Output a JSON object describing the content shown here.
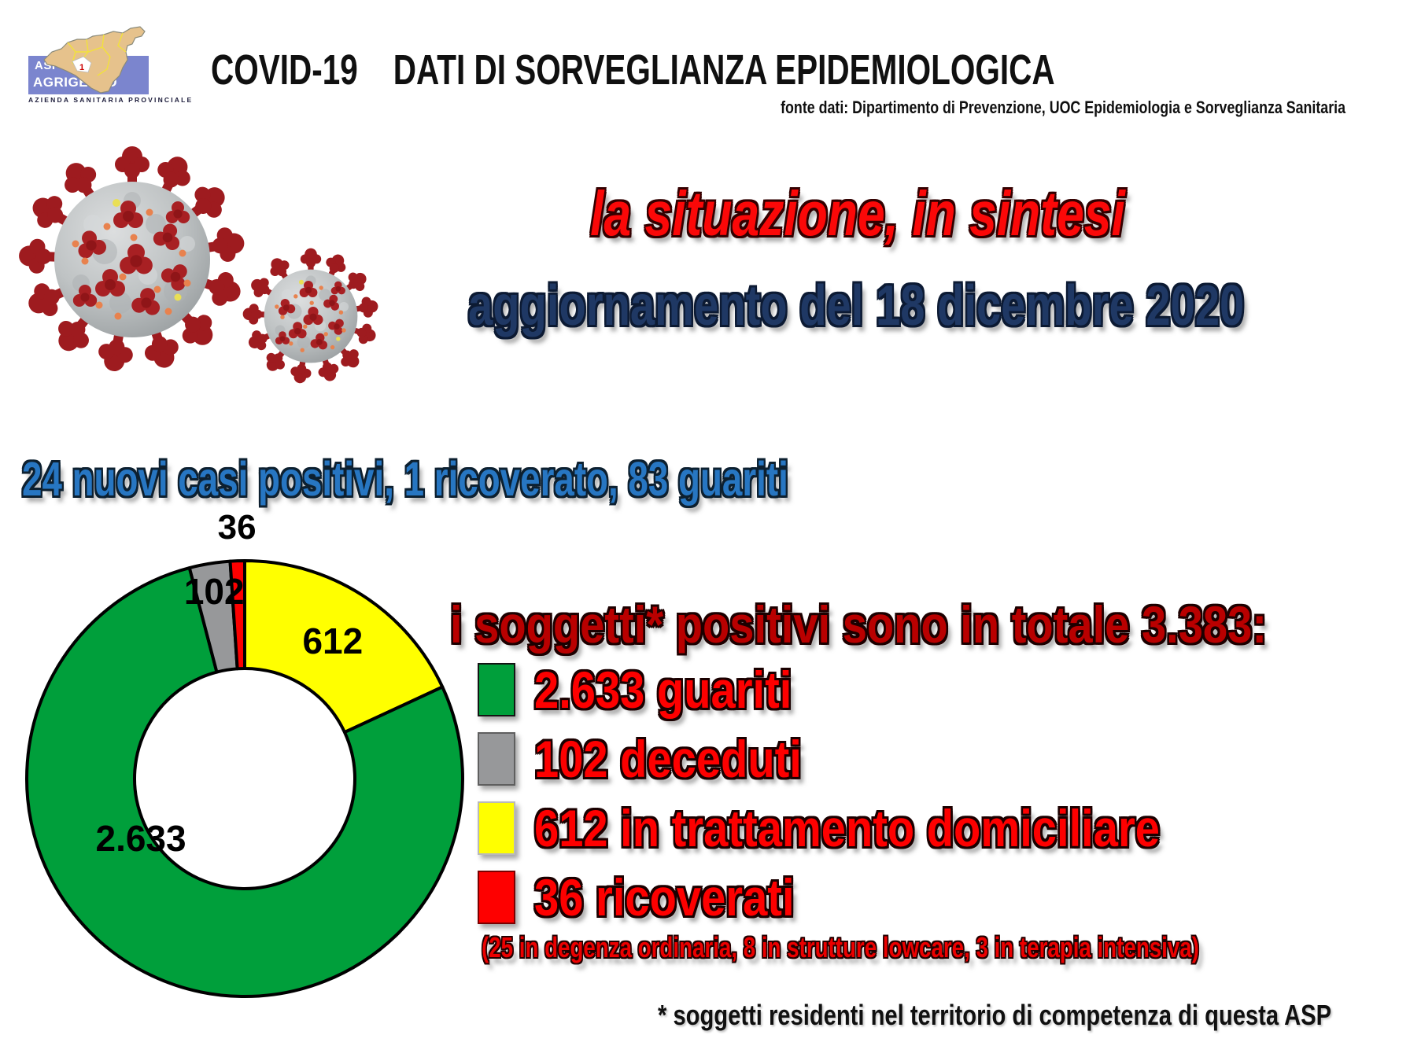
{
  "slide": {
    "logo": {
      "org_short": "ASP",
      "org_city": "AGRIGENTO",
      "org_subtitle": "AZIENDA SANITARIA PROVINCIALE",
      "map_label": "1"
    },
    "header": {
      "title_part1": "COVID-19",
      "title_part2": "DATI DI SORVEGLIANZA EPIDEMIOLOGICA",
      "source_line": "fonte dati: Dipartimento di Prevenzione, UOC Epidemiologia e Sorveglianza Sanitaria"
    },
    "intro": {
      "headline": "la situazione, in sintesi",
      "update_line": "aggiornamento del 18 dicembre 2020",
      "daily_line": "24 nuovi casi positivi, 1 ricoverato, 83 guariti"
    },
    "summary": {
      "title": "i soggetti* positivi sono in totale 3.383:",
      "legend": [
        {
          "key": "guariti",
          "label": "2.633 guariti",
          "color": "#009f3b",
          "border": "#141414"
        },
        {
          "key": "deceduti",
          "label": "102 deceduti",
          "color": "#97989a",
          "border": "#5f5f5f"
        },
        {
          "key": "trattamento-domiciliare",
          "label": "612 in trattamento domiciliare",
          "color": "#ffff00",
          "border": "#b9b9b9"
        },
        {
          "key": "ricoverati",
          "label": "36 ricoverati",
          "color": "#fe0000",
          "border": "#7a0000"
        }
      ],
      "hospital_note": "(25 in degenza ordinaria, 8 in strutture lowcare, 3 in terapia intensiva)",
      "footnote": "* soggetti residenti nel territorio di competenza di questa ASP"
    }
  },
  "chart_data": {
    "type": "pie",
    "subtype": "donut",
    "title": "",
    "total": 3383,
    "units": "soggetti positivi",
    "order": "clockwise from 12 o'clock",
    "slices": [
      {
        "name": "in trattamento domiciliare",
        "value": 612,
        "label": "612",
        "color": "#ffff00"
      },
      {
        "name": "guariti",
        "value": 2633,
        "label": "2.633",
        "color": "#009f3b"
      },
      {
        "name": "deceduti",
        "value": 102,
        "label": "102",
        "color": "#97989a"
      },
      {
        "name": "ricoverati",
        "value": 36,
        "label": "36",
        "color": "#fe0000"
      }
    ],
    "legend_position": "right",
    "slice_border_color": "#000000"
  },
  "colors": {
    "headline_red": "#fb0808",
    "update_navy": "#1f3864",
    "daily_blue": "#2776c2",
    "summary_dark_red": "#b90000",
    "legend_red": "#fe0000",
    "note_red": "#ec0000",
    "logo_band_blue": "#7b85ce",
    "map_tan": "#e6c28c",
    "map_border_yellow": "#f2e13c",
    "virus_spike_red": "#9e1b1f",
    "virus_body_gray": "#bfc3c4"
  }
}
